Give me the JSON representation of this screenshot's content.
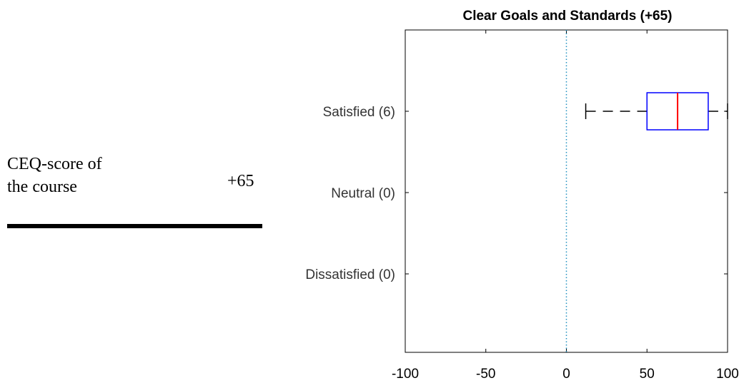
{
  "summary": {
    "label_line1": "CEQ-score of",
    "label_line2": "the course",
    "value": "+65"
  },
  "chart_data": {
    "type": "boxplot",
    "orientation": "horizontal",
    "title": "Clear Goals and Standards (+65)",
    "categories": [
      "Satisfied (6)",
      "Neutral (0)",
      "Dissatisfied (0)"
    ],
    "xlim": [
      -100,
      100
    ],
    "xticks": [
      -100,
      -50,
      0,
      50,
      100
    ],
    "reference_line": {
      "x": 0,
      "style": "dotted",
      "color": "#1f8fbf"
    },
    "boxes": [
      {
        "category": "Satisfied (6)",
        "whisker_low": 12,
        "q1": 50,
        "median": 69,
        "q3": 88,
        "whisker_high": 100
      }
    ],
    "colors": {
      "box": "#0000ff",
      "median": "#ff0000",
      "whisker": "#000000",
      "axis": "#000000"
    }
  }
}
